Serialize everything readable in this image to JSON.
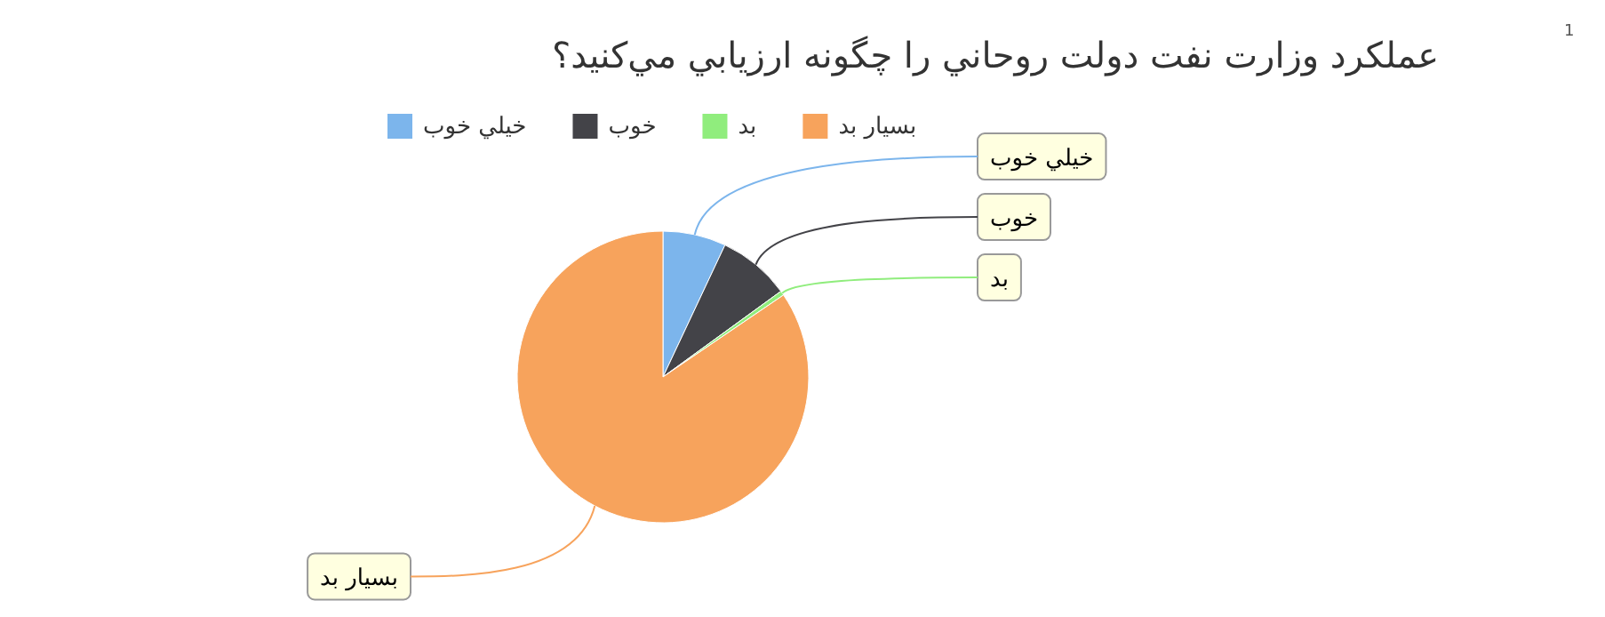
{
  "chart_data": {
    "type": "pie",
    "title": "عملکرد وزارت نفت دولت روحاني را چگونه ارزيابي مي‌کنيد؟",
    "annotations": [
      "1"
    ],
    "categories": [
      "خيلي خوب",
      "خوب",
      "بد",
      "بسيار بد"
    ],
    "values": [
      7,
      8,
      0.5,
      84.5
    ],
    "colors": [
      "#7cb5ec",
      "#434348",
      "#90ed7d",
      "#f7a35c"
    ],
    "legend": "top"
  }
}
